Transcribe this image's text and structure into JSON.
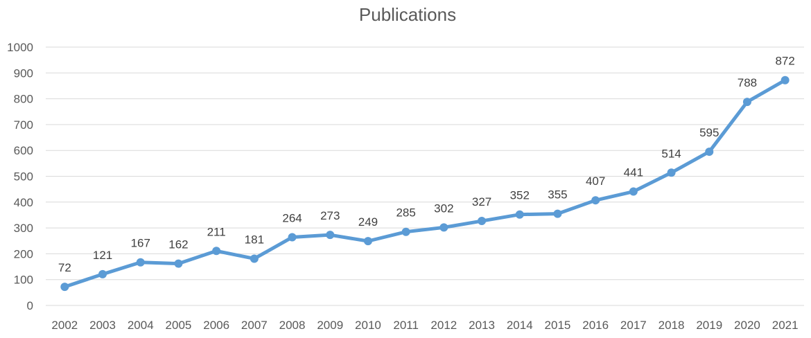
{
  "chart_data": {
    "type": "line",
    "title": "Publications",
    "xlabel": "",
    "ylabel": "",
    "categories": [
      "2002",
      "2003",
      "2004",
      "2005",
      "2006",
      "2007",
      "2008",
      "2009",
      "2010",
      "2011",
      "2012",
      "2013",
      "2014",
      "2015",
      "2016",
      "2017",
      "2018",
      "2019",
      "2020",
      "2021"
    ],
    "series": [
      {
        "values": [
          72,
          121,
          167,
          162,
          211,
          181,
          264,
          273,
          249,
          285,
          302,
          327,
          352,
          355,
          407,
          441,
          514,
          595,
          788,
          872
        ],
        "color": "#5b9bd5"
      }
    ],
    "yticks": [
      "0",
      "100",
      "200",
      "300",
      "400",
      "500",
      "600",
      "700",
      "800",
      "900",
      "1000"
    ],
    "ylim": [
      0,
      1000
    ],
    "grid": true,
    "legend": "none",
    "data_labels": true
  }
}
